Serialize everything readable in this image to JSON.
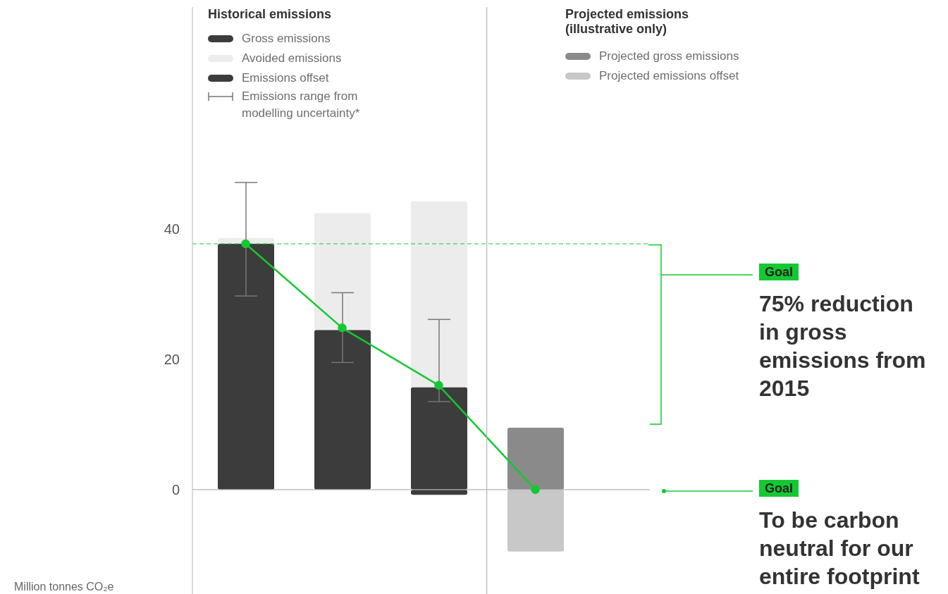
{
  "chart_data": {
    "type": "bar",
    "stacked": true,
    "categories": [
      null,
      null,
      null,
      null
    ],
    "series": [
      {
        "name": "Gross emissions",
        "color": "#3c3c3c",
        "values": [
          37.7,
          24.5,
          15.7,
          null
        ],
        "errors": [
          [
            29.7,
            47.1
          ],
          [
            19.5,
            30.2
          ],
          [
            13.5,
            26.1
          ],
          null
        ]
      },
      {
        "name": "Avoided emissions",
        "color": "#ececec",
        "values": [
          0.9,
          17.9,
          28.5,
          null
        ]
      },
      {
        "name": "Emissions offset",
        "color": "#3c3c3c",
        "values": [
          null,
          null,
          -0.8,
          null
        ]
      },
      {
        "name": "Projected gross emissions",
        "color": "#8a8a8a",
        "values": [
          null,
          null,
          null,
          9.5
        ]
      },
      {
        "name": "Projected emissions offset",
        "color": "#c8c8c8",
        "values": [
          null,
          null,
          null,
          -9.5
        ]
      },
      {
        "type": "line",
        "color": "#14c832",
        "values": [
          37.7,
          24.8,
          16.0,
          0
        ]
      }
    ],
    "ylabel": "Million tonnes CO₂e",
    "ylim": [
      -16,
      74
    ],
    "yticks": [
      0,
      20,
      40
    ],
    "tick_labels": "y",
    "marker": "circle",
    "legend": "top",
    "ref_lines": [
      {
        "axis": "y",
        "value": 0,
        "color": "#b4b4b4"
      },
      {
        "axis": "y",
        "value": 37.7,
        "color": "#14c832",
        "line_style": "dashed"
      }
    ],
    "annotations": [
      "Historical emissions",
      "Projected emissions (illustrative only)",
      "Emissions range from modelling uncertainty*",
      "Goal",
      "75% reduction in gross emissions from 2015",
      "Goal",
      "To be carbon neutral for our entire footprint"
    ]
  }
}
